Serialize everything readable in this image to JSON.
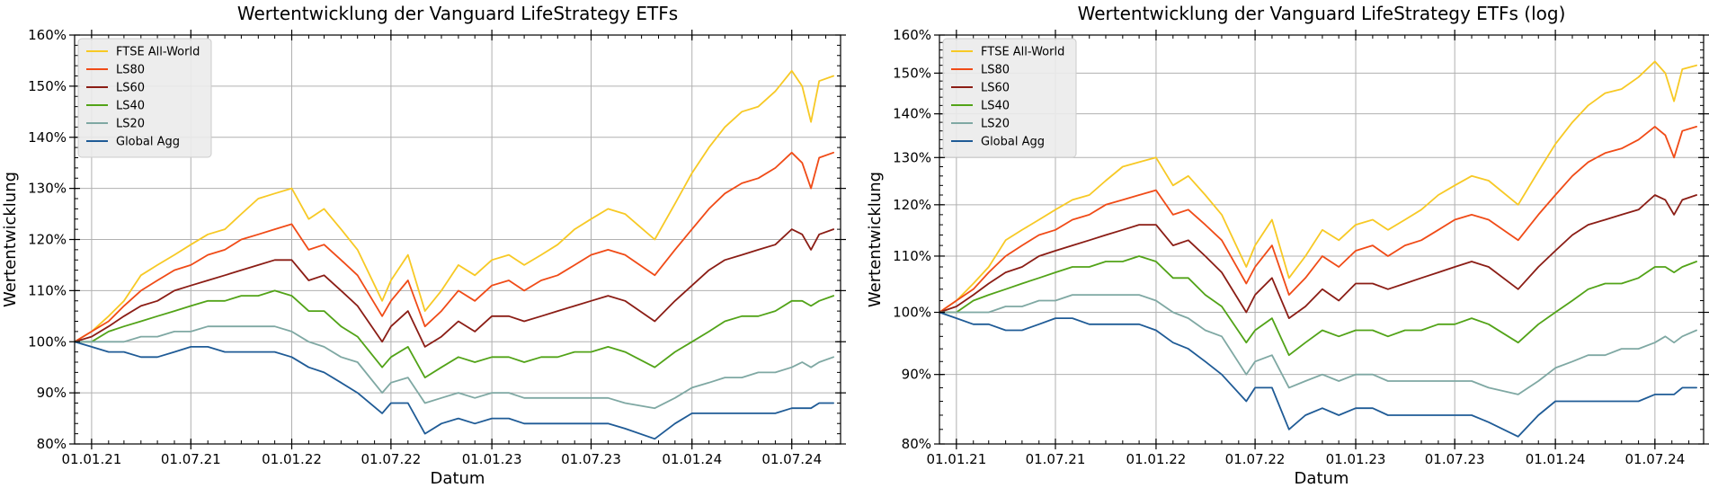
{
  "chart_data": [
    {
      "type": "line",
      "title": "Wertentwicklung der Vanguard LifeStrategy ETFs",
      "xlabel": "Datum",
      "ylabel": "Wertentwicklung",
      "yscale": "linear",
      "ylim": [
        80,
        160
      ],
      "xlim": [
        "2020-12-01",
        "2024-09-28"
      ],
      "xticks": [
        {
          "date": "2021-01-01",
          "label": "01.01.21"
        },
        {
          "date": "2021-07-01",
          "label": "01.07.21"
        },
        {
          "date": "2022-01-01",
          "label": "01.01.22"
        },
        {
          "date": "2022-07-01",
          "label": "01.07.22"
        },
        {
          "date": "2023-01-01",
          "label": "01.01.23"
        },
        {
          "date": "2023-07-01",
          "label": "01.07.23"
        },
        {
          "date": "2024-01-01",
          "label": "01.01.24"
        },
        {
          "date": "2024-07-01",
          "label": "01.07.24"
        }
      ],
      "yticks": [
        {
          "value": 80,
          "label": "80%"
        },
        {
          "value": 90,
          "label": "90%"
        },
        {
          "value": 100,
          "label": "100%"
        },
        {
          "value": 110,
          "label": "110%"
        },
        {
          "value": 120,
          "label": "120%"
        },
        {
          "value": 130,
          "label": "130%"
        },
        {
          "value": 140,
          "label": "140%"
        },
        {
          "value": 150,
          "label": "150%"
        },
        {
          "value": 160,
          "label": "160%"
        }
      ],
      "grid": true,
      "legend_position": "top-left",
      "x": [
        "2020-12-01",
        "2021-01-01",
        "2021-02-01",
        "2021-03-01",
        "2021-04-01",
        "2021-05-01",
        "2021-06-01",
        "2021-07-01",
        "2021-08-01",
        "2021-09-01",
        "2021-10-01",
        "2021-11-01",
        "2021-12-01",
        "2022-01-01",
        "2022-02-01",
        "2022-03-01",
        "2022-04-01",
        "2022-05-01",
        "2022-06-15",
        "2022-07-01",
        "2022-08-01",
        "2022-09-01",
        "2022-10-01",
        "2022-11-01",
        "2022-12-01",
        "2023-01-01",
        "2023-02-01",
        "2023-03-01",
        "2023-04-01",
        "2023-05-01",
        "2023-06-01",
        "2023-07-01",
        "2023-08-01",
        "2023-09-01",
        "2023-10-25",
        "2023-12-01",
        "2024-01-01",
        "2024-02-01",
        "2024-03-01",
        "2024-04-01",
        "2024-05-01",
        "2024-06-01",
        "2024-07-01",
        "2024-07-20",
        "2024-08-05",
        "2024-08-20",
        "2024-09-15"
      ],
      "series": [
        {
          "name": "FTSE All-World",
          "color": "#f7c925",
          "values": [
            100,
            102,
            105,
            108,
            113,
            115,
            117,
            119,
            121,
            122,
            125,
            128,
            129,
            130,
            124,
            126,
            122,
            118,
            108,
            112,
            117,
            106,
            110,
            115,
            113,
            116,
            117,
            115,
            117,
            119,
            122,
            124,
            126,
            125,
            120,
            127,
            133,
            138,
            142,
            145,
            146,
            149,
            153,
            150,
            143,
            151,
            152
          ]
        },
        {
          "name": "LS80",
          "color": "#f04b17",
          "values": [
            100,
            102,
            104,
            107,
            110,
            112,
            114,
            115,
            117,
            118,
            120,
            121,
            122,
            123,
            118,
            119,
            116,
            113,
            105,
            108,
            112,
            103,
            106,
            110,
            108,
            111,
            112,
            110,
            112,
            113,
            115,
            117,
            118,
            117,
            113,
            118,
            122,
            126,
            129,
            131,
            132,
            134,
            137,
            135,
            130,
            136,
            137
          ]
        },
        {
          "name": "LS60",
          "color": "#8b1d15",
          "values": [
            100,
            101,
            103,
            105,
            107,
            108,
            110,
            111,
            112,
            113,
            114,
            115,
            116,
            116,
            112,
            113,
            110,
            107,
            100,
            103,
            106,
            99,
            101,
            104,
            102,
            105,
            105,
            104,
            105,
            106,
            107,
            108,
            109,
            108,
            104,
            108,
            111,
            114,
            116,
            117,
            118,
            119,
            122,
            121,
            118,
            121,
            122
          ]
        },
        {
          "name": "LS40",
          "color": "#52a318",
          "values": [
            100,
            100,
            102,
            103,
            104,
            105,
            106,
            107,
            108,
            108,
            109,
            109,
            110,
            109,
            106,
            106,
            103,
            101,
            95,
            97,
            99,
            93,
            95,
            97,
            96,
            97,
            97,
            96,
            97,
            97,
            98,
            98,
            99,
            98,
            95,
            98,
            100,
            102,
            104,
            105,
            105,
            106,
            108,
            108,
            107,
            108,
            109
          ]
        },
        {
          "name": "LS20",
          "color": "#7fa8a3",
          "values": [
            100,
            100,
            100,
            100,
            101,
            101,
            102,
            102,
            103,
            103,
            103,
            103,
            103,
            102,
            100,
            99,
            97,
            96,
            90,
            92,
            93,
            88,
            89,
            90,
            89,
            90,
            90,
            89,
            89,
            89,
            89,
            89,
            89,
            88,
            87,
            89,
            91,
            92,
            93,
            93,
            94,
            94,
            95,
            96,
            95,
            96,
            97
          ]
        },
        {
          "name": "Global Agg",
          "color": "#1f5b96",
          "values": [
            100,
            99,
            98,
            98,
            97,
            97,
            98,
            99,
            99,
            98,
            98,
            98,
            98,
            97,
            95,
            94,
            92,
            90,
            86,
            88,
            88,
            82,
            84,
            85,
            84,
            85,
            85,
            84,
            84,
            84,
            84,
            84,
            84,
            83,
            81,
            84,
            86,
            86,
            86,
            86,
            86,
            86,
            87,
            87,
            87,
            88,
            88
          ]
        }
      ]
    },
    {
      "type": "line",
      "title": "Wertentwicklung der Vanguard LifeStrategy ETFs (log)",
      "xlabel": "Datum",
      "ylabel": "Wertentwicklung",
      "yscale": "log",
      "ylim": [
        80,
        160
      ],
      "xlim": [
        "2020-12-01",
        "2024-09-28"
      ],
      "xticks": [
        {
          "date": "2021-01-01",
          "label": "01.01.21"
        },
        {
          "date": "2021-07-01",
          "label": "01.07.21"
        },
        {
          "date": "2022-01-01",
          "label": "01.01.22"
        },
        {
          "date": "2022-07-01",
          "label": "01.07.22"
        },
        {
          "date": "2023-01-01",
          "label": "01.01.23"
        },
        {
          "date": "2023-07-01",
          "label": "01.07.23"
        },
        {
          "date": "2024-01-01",
          "label": "01.01.24"
        },
        {
          "date": "2024-07-01",
          "label": "01.07.24"
        }
      ],
      "yticks": [
        {
          "value": 80,
          "label": "80%"
        },
        {
          "value": 90,
          "label": "90%"
        },
        {
          "value": 100,
          "label": "100%"
        },
        {
          "value": 110,
          "label": "110%"
        },
        {
          "value": 120,
          "label": "120%"
        },
        {
          "value": 130,
          "label": "130%"
        },
        {
          "value": 140,
          "label": "140%"
        },
        {
          "value": 150,
          "label": "150%"
        },
        {
          "value": 160,
          "label": "160%"
        }
      ],
      "grid": true,
      "legend_position": "top-left",
      "x": [
        "2020-12-01",
        "2021-01-01",
        "2021-02-01",
        "2021-03-01",
        "2021-04-01",
        "2021-05-01",
        "2021-06-01",
        "2021-07-01",
        "2021-08-01",
        "2021-09-01",
        "2021-10-01",
        "2021-11-01",
        "2021-12-01",
        "2022-01-01",
        "2022-02-01",
        "2022-03-01",
        "2022-04-01",
        "2022-05-01",
        "2022-06-15",
        "2022-07-01",
        "2022-08-01",
        "2022-09-01",
        "2022-10-01",
        "2022-11-01",
        "2022-12-01",
        "2023-01-01",
        "2023-02-01",
        "2023-03-01",
        "2023-04-01",
        "2023-05-01",
        "2023-06-01",
        "2023-07-01",
        "2023-08-01",
        "2023-09-01",
        "2023-10-25",
        "2023-12-01",
        "2024-01-01",
        "2024-02-01",
        "2024-03-01",
        "2024-04-01",
        "2024-05-01",
        "2024-06-01",
        "2024-07-01",
        "2024-07-20",
        "2024-08-05",
        "2024-08-20",
        "2024-09-15"
      ],
      "series": [
        {
          "name": "FTSE All-World",
          "color": "#f7c925",
          "values": [
            100,
            102,
            105,
            108,
            113,
            115,
            117,
            119,
            121,
            122,
            125,
            128,
            129,
            130,
            124,
            126,
            122,
            118,
            108,
            112,
            117,
            106,
            110,
            115,
            113,
            116,
            117,
            115,
            117,
            119,
            122,
            124,
            126,
            125,
            120,
            127,
            133,
            138,
            142,
            145,
            146,
            149,
            153,
            150,
            143,
            151,
            152
          ]
        },
        {
          "name": "LS80",
          "color": "#f04b17",
          "values": [
            100,
            102,
            104,
            107,
            110,
            112,
            114,
            115,
            117,
            118,
            120,
            121,
            122,
            123,
            118,
            119,
            116,
            113,
            105,
            108,
            112,
            103,
            106,
            110,
            108,
            111,
            112,
            110,
            112,
            113,
            115,
            117,
            118,
            117,
            113,
            118,
            122,
            126,
            129,
            131,
            132,
            134,
            137,
            135,
            130,
            136,
            137
          ]
        },
        {
          "name": "LS60",
          "color": "#8b1d15",
          "values": [
            100,
            101,
            103,
            105,
            107,
            108,
            110,
            111,
            112,
            113,
            114,
            115,
            116,
            116,
            112,
            113,
            110,
            107,
            100,
            103,
            106,
            99,
            101,
            104,
            102,
            105,
            105,
            104,
            105,
            106,
            107,
            108,
            109,
            108,
            104,
            108,
            111,
            114,
            116,
            117,
            118,
            119,
            122,
            121,
            118,
            121,
            122
          ]
        },
        {
          "name": "LS40",
          "color": "#52a318",
          "values": [
            100,
            100,
            102,
            103,
            104,
            105,
            106,
            107,
            108,
            108,
            109,
            109,
            110,
            109,
            106,
            106,
            103,
            101,
            95,
            97,
            99,
            93,
            95,
            97,
            96,
            97,
            97,
            96,
            97,
            97,
            98,
            98,
            99,
            98,
            95,
            98,
            100,
            102,
            104,
            105,
            105,
            106,
            108,
            108,
            107,
            108,
            109
          ]
        },
        {
          "name": "LS20",
          "color": "#7fa8a3",
          "values": [
            100,
            100,
            100,
            100,
            101,
            101,
            102,
            102,
            103,
            103,
            103,
            103,
            103,
            102,
            100,
            99,
            97,
            96,
            90,
            92,
            93,
            88,
            89,
            90,
            89,
            90,
            90,
            89,
            89,
            89,
            89,
            89,
            89,
            88,
            87,
            89,
            91,
            92,
            93,
            93,
            94,
            94,
            95,
            96,
            95,
            96,
            97
          ]
        },
        {
          "name": "Global Agg",
          "color": "#1f5b96",
          "values": [
            100,
            99,
            98,
            98,
            97,
            97,
            98,
            99,
            99,
            98,
            98,
            98,
            98,
            97,
            95,
            94,
            92,
            90,
            86,
            88,
            88,
            82,
            84,
            85,
            84,
            85,
            85,
            84,
            84,
            84,
            84,
            84,
            84,
            83,
            81,
            84,
            86,
            86,
            86,
            86,
            86,
            86,
            87,
            87,
            87,
            88,
            88
          ]
        }
      ]
    }
  ]
}
